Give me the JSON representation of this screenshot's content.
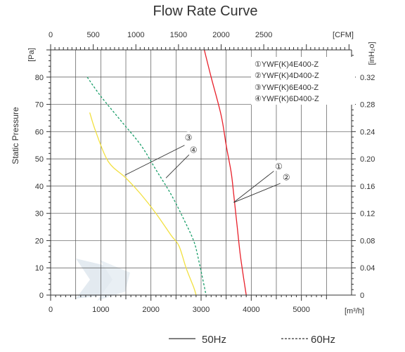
{
  "chart_data": {
    "type": "line",
    "title": "Flow Rate Curve",
    "ylabel": "Static Pressure",
    "units": {
      "x_bottom": "[m³/h]",
      "x_top": "[CFM]",
      "y_left": "[Pa]",
      "y_right": "[inH₂o]"
    },
    "x_bottom": {
      "lim": [
        0,
        6000
      ],
      "ticks": [
        0,
        1000,
        2000,
        3000,
        4000,
        5000
      ]
    },
    "x_top": {
      "lim": [
        0,
        3530
      ],
      "ticks": [
        0,
        500,
        1000,
        1500,
        2000,
        2500
      ]
    },
    "y_left": {
      "lim": [
        0,
        90
      ],
      "ticks": [
        0,
        10,
        20,
        30,
        40,
        50,
        60,
        70,
        80
      ]
    },
    "y_right": {
      "lim": [
        0,
        0.36
      ],
      "ticks": [
        "0",
        "0.04",
        "0.08",
        "0.12",
        "0.16",
        "0.20",
        "0.24",
        "0.28",
        "0.32"
      ]
    },
    "grid": true,
    "legend_position": "top-right",
    "legend": [
      "①YWF(K)4E400-Z",
      "②YWF(K)4D400-Z",
      "③YWF(K)6E400-Z",
      "④YWF(K)6D400-Z"
    ],
    "series": [
      {
        "marker_labels": [
          "①",
          "②"
        ],
        "color": "#e8202a",
        "style": "solid",
        "x": [
          3050,
          3200,
          3400,
          3500,
          3600,
          3650,
          3720,
          3780,
          3850,
          3900
        ],
        "y": [
          91,
          80,
          66,
          55,
          45,
          37,
          25,
          15,
          6,
          0
        ]
      },
      {
        "marker_labels": [
          "③",
          "④"
        ],
        "color": "#f2e040",
        "style": "solid",
        "x": [
          780,
          900,
          1150,
          1500,
          1800,
          2100,
          2400,
          2560,
          2700,
          2850,
          2900
        ],
        "y": [
          67,
          60,
          49,
          43,
          37,
          30,
          22,
          18,
          10,
          3,
          0
        ]
      },
      {
        "marker_labels": [
          "③",
          "④"
        ],
        "color": "#1a9e6a",
        "style": "dashed",
        "x": [
          730,
          1000,
          1400,
          1800,
          2100,
          2400,
          2650,
          2850,
          2950,
          3100
        ],
        "y": [
          80,
          73,
          64,
          55,
          46,
          37,
          28,
          20,
          13,
          0
        ]
      }
    ],
    "callout_labels": [
      {
        "text": "③",
        "x": 2750,
        "y": 58
      },
      {
        "text": "④",
        "x": 2850,
        "y": 53.5
      },
      {
        "text": "①",
        "x": 4550,
        "y": 47.5
      },
      {
        "text": "②",
        "x": 4700,
        "y": 43.5
      }
    ]
  },
  "footer_legend": [
    {
      "label": "50Hz",
      "style": "solid",
      "color": "#333333"
    },
    {
      "label": "60Hz",
      "style": "dashed",
      "color": "#333333"
    }
  ]
}
